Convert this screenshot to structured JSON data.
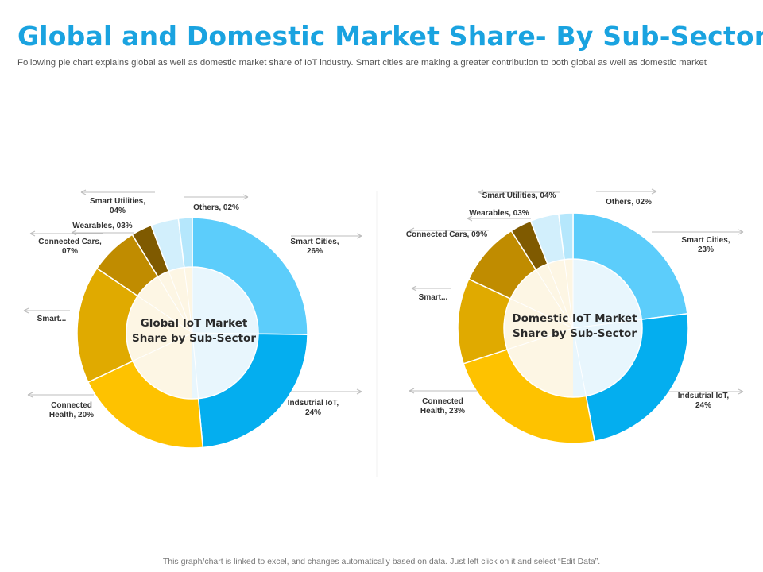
{
  "header": {
    "title": "Global and Domestic Market Share- By Sub-Sector",
    "subtitle": "Following pie chart explains global as well as domestic market share of IoT industry. Smart cities are making a greater  contribution to both global as well as domestic market"
  },
  "footer": {
    "note": "This graph/chart is linked to excel, and changes automatically based on data. Just left click on it and select “Edit Data”."
  },
  "chart_data": [
    {
      "type": "pie",
      "variant": "donut",
      "title": "Global IoT Market Share by Sub-Sector",
      "center_lines": [
        "Global IoT Market",
        "Share by Sub-Sector"
      ],
      "categories": [
        "Smart Cities",
        "Indsutrial IoT",
        "Connected Health",
        "Smart...",
        "Connected Cars",
        "Wearables",
        "Smart Utilities",
        "Others"
      ],
      "values": [
        26,
        24,
        20,
        17,
        7,
        3,
        4,
        2
      ],
      "labels": [
        [
          "Smart Cities,",
          "26%"
        ],
        [
          "Indsutrial IoT,",
          "24%"
        ],
        [
          "Connected",
          "Health, 20%"
        ],
        [
          "Smart..."
        ],
        [
          "Connected Cars,",
          "07%"
        ],
        [
          "Wearables, 03%"
        ],
        [
          "Smart Utilities,",
          "04%"
        ],
        [
          "Others, 02%"
        ]
      ],
      "colors": [
        "#5ccdfb",
        "#04aeef",
        "#fec200",
        "#e0aa00",
        "#c08c00",
        "#7f5a00",
        "#d2effc",
        "#b5e7fc"
      ]
    },
    {
      "type": "pie",
      "variant": "donut",
      "title": "Domestic IoT Market Share by Sub-Sector",
      "center_lines": [
        "Domestic IoT Market",
        "Share by Sub-Sector"
      ],
      "categories": [
        "Smart Cities",
        "Indsutrial IoT",
        "Connected Health",
        "Smart...",
        "Connected Cars",
        "Wearables",
        "Smart Utilities",
        "Others"
      ],
      "values": [
        23,
        24,
        23,
        12,
        9,
        3,
        4,
        2
      ],
      "labels": [
        [
          "Smart Cities,",
          "23%"
        ],
        [
          "Indsutrial IoT,",
          "24%"
        ],
        [
          "Connected",
          "Health, 23%"
        ],
        [
          "Smart..."
        ],
        [
          "Connected Cars, 09%"
        ],
        [
          "Wearables, 03%"
        ],
        [
          "Smart Utilities, 04%"
        ],
        [
          "Others, 02%"
        ]
      ],
      "colors": [
        "#5ccdfb",
        "#04aeef",
        "#fec200",
        "#e0aa00",
        "#c08c00",
        "#7f5a00",
        "#d2effc",
        "#b5e7fc"
      ]
    }
  ]
}
